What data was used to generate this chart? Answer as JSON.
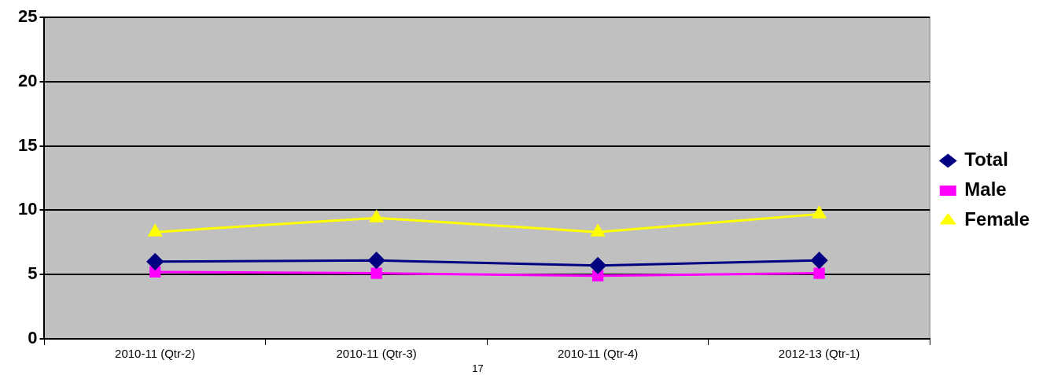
{
  "chart_data": {
    "type": "line",
    "categories": [
      "2010-11 (Qtr-2)",
      "2010-11 (Qtr-3)",
      "2010-11 (Qtr-4)",
      "2012-13 (Qtr-1)"
    ],
    "series": [
      {
        "name": "Total",
        "color": "#000080",
        "marker": "diamond",
        "values": [
          6.0,
          6.1,
          5.7,
          6.1
        ]
      },
      {
        "name": "Male",
        "color": "#ff00ff",
        "marker": "square",
        "values": [
          5.2,
          5.1,
          4.9,
          5.1
        ]
      },
      {
        "name": "Female",
        "color": "#ffff00",
        "marker": "triangle",
        "values": [
          8.3,
          9.4,
          8.3,
          9.7
        ]
      }
    ],
    "ylim": [
      0,
      25
    ],
    "yticks": [
      0,
      5,
      10,
      15,
      20,
      25
    ],
    "grid": "y",
    "legend": "right",
    "annotations": [
      "17"
    ]
  }
}
